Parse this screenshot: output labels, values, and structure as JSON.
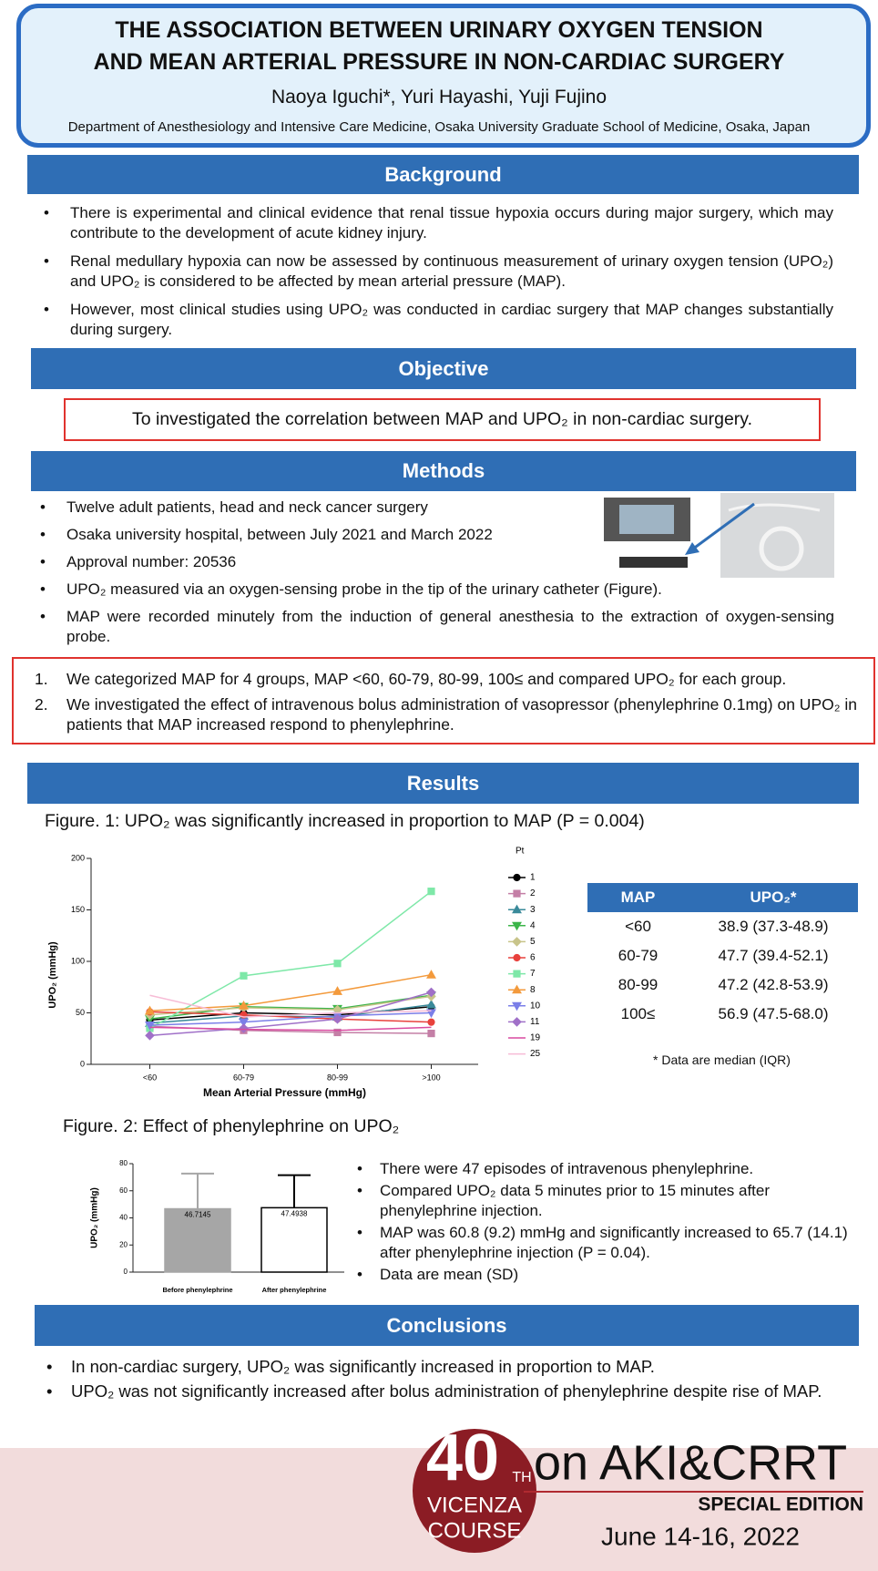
{
  "header": {
    "title": [
      "THE ASSOCIATION BETWEEN URINARY OXYGEN TENSION",
      "AND MEAN ARTERIAL PRESSURE IN NON-CARDIAC SURGERY"
    ],
    "authors": "Naoya Iguchi*, Yuri Hayashi, Yuji Fujino",
    "affiliation": "Department of Anesthesiology and Intensive Care Medicine, Osaka University Graduate School of Medicine, Osaka, Japan"
  },
  "background": {
    "heading": "Background",
    "bullets": [
      "There is experimental and clinical evidence that renal tissue hypoxia occurs during major surgery, which may contribute to the development of acute kidney injury.",
      "Renal medullary hypoxia can now be assessed by continuous measurement of urinary oxygen tension (UPO₂) and UPO₂ is considered to be affected by mean arterial pressure (MAP).",
      "However, most clinical studies using UPO₂ was conducted in cardiac surgery that MAP changes substantially during surgery."
    ]
  },
  "objective": {
    "heading": "Objective",
    "text": "To investigated the correlation between MAP and UPO₂ in non-cardiac surgery."
  },
  "methods": {
    "heading": "Methods",
    "bullets": [
      "Twelve adult patients, head and neck cancer surgery",
      "Osaka university hospital, between July 2021 and March 2022",
      "Approval number: 20536",
      "UPO₂ measured via an oxygen-sensing probe in the tip of the urinary catheter (Figure).",
      "MAP were recorded minutely from the induction of general anesthesia to the extraction of oxygen-sensing probe."
    ],
    "steps": [
      {
        "number": "1.",
        "text": "We categorized MAP for 4 groups, MAP <60, 60-79, 80-99, 100≤ and compared UPO₂ for each group."
      },
      {
        "number": "2.",
        "text": "We investigated the effect of intravenous bolus administration of vasopressor (phenylephrine 0.1mg) on UPO₂ in patients that MAP increased respond to phenylephrine."
      }
    ]
  },
  "results": {
    "heading": "Results"
  },
  "figure1": {
    "caption": "Figure. 1: UPO₂ was significantly increased in proportion to MAP (P = 0.004)",
    "chart_data": {
      "type": "line",
      "x_label": "Mean Arterial Pressure (mmHg)",
      "y_label": "UPO₂ (mmHg)",
      "legend_title": "Pt",
      "categories": [
        "<60",
        "60-79",
        "80-99",
        ">100"
      ],
      "ylim": [
        0,
        200
      ],
      "yticks": [
        0,
        50,
        100,
        150,
        200
      ],
      "grid": false,
      "series": [
        {
          "name": "1",
          "color": "#000000",
          "marker": "circle",
          "values": [
            43,
            50,
            48,
            56
          ]
        },
        {
          "name": "2",
          "color": "#c47fa6",
          "marker": "square",
          "values": [
            37,
            33,
            31,
            30
          ]
        },
        {
          "name": "3",
          "color": "#3a8a9a",
          "marker": "triangle",
          "values": [
            40,
            47,
            46,
            58
          ]
        },
        {
          "name": "4",
          "color": "#3cb54a",
          "marker": "triangle-down",
          "values": [
            44,
            56,
            54,
            67
          ]
        },
        {
          "name": "5",
          "color": "#c8c48a",
          "marker": "diamond",
          "values": [
            48,
            55,
            53,
            66
          ]
        },
        {
          "name": "6",
          "color": "#e8413c",
          "marker": "circle",
          "values": [
            51,
            48,
            44,
            41
          ]
        },
        {
          "name": "7",
          "color": "#7ee8a8",
          "marker": "square",
          "values": [
            35,
            86,
            98,
            168
          ]
        },
        {
          "name": "8",
          "color": "#f39a3c",
          "marker": "triangle",
          "values": [
            52,
            57,
            71,
            87
          ]
        },
        {
          "name": "10",
          "color": "#7b7fe8",
          "marker": "triangle-down",
          "values": [
            38,
            41,
            47,
            50
          ]
        },
        {
          "name": "11",
          "color": "#a070c8",
          "marker": "diamond",
          "values": [
            28,
            35,
            44,
            70
          ]
        },
        {
          "name": "19",
          "color": "#d94aa0",
          "marker": "none",
          "values": [
            36,
            34,
            33,
            36
          ]
        },
        {
          "name": "25",
          "color": "#f7bcd6",
          "marker": "none",
          "values": [
            67,
            46,
            50,
            52
          ]
        }
      ]
    }
  },
  "table": {
    "header": [
      "MAP",
      "UPO₂*"
    ],
    "rows": [
      [
        "<60",
        "38.9 (37.3-48.9)"
      ],
      [
        "60-79",
        "47.7 (39.4-52.1)"
      ],
      [
        "80-99",
        "47.2 (42.8-53.9)"
      ],
      [
        "100≤",
        "56.9 (47.5-68.0)"
      ]
    ],
    "note": "* Data are median (IQR)"
  },
  "figure2": {
    "caption": "Figure. 2: Effect of phenylephrine on UPO₂",
    "chart_data": {
      "type": "bar",
      "y_label": "UPO₂ (mmHg)",
      "categories": [
        "Before phenylephrine",
        "After phenylephrine"
      ],
      "values": [
        46.7145,
        47.4938
      ],
      "errors": [
        26,
        24
      ],
      "colors": [
        "#a6a6a6",
        "#ffffff"
      ],
      "ylim": [
        0,
        80
      ],
      "yticks": [
        0,
        20,
        40,
        60,
        80
      ]
    },
    "bullets": [
      "There were 47 episodes of intravenous phenylephrine.",
      "Compared UPO₂ data 5 minutes prior to 15 minutes after phenylephrine injection.",
      "MAP was 60.8 (9.2) mmHg and significantly increased to 65.7 (14.1) after phenylephrine injection (P = 0.04).",
      "Data are mean (SD)"
    ]
  },
  "conclusions": {
    "heading": "Conclusions",
    "bullets": [
      "In non-cardiac surgery, UPO₂ was significantly increased in proportion to MAP.",
      "UPO₂ was not significantly increased after bolus administration of phenylephrine despite rise of MAP."
    ]
  },
  "footer": {
    "logo_number": "40",
    "logo_suffix": "TH",
    "logo_line1": "VICENZA",
    "logo_line2": "COURSE",
    "event": "on AKI&CRRT",
    "edition": "SPECIAL EDITION",
    "dates": "June 14-16, 2022"
  }
}
